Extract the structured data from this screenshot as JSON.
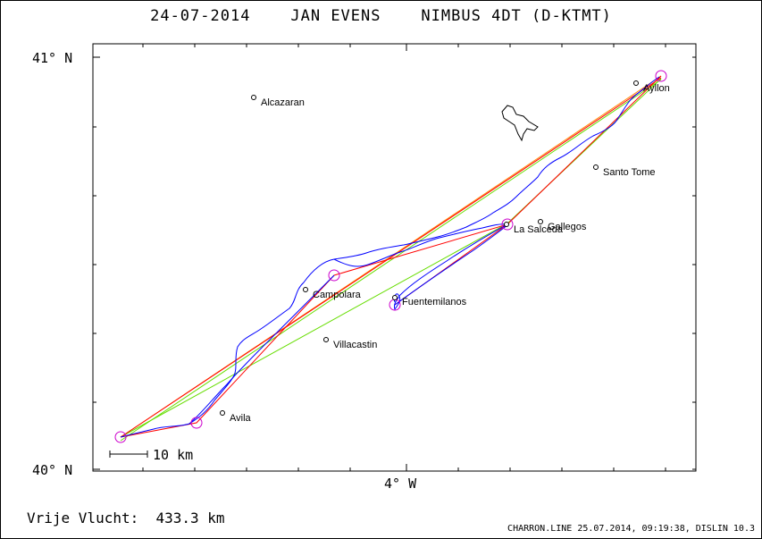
{
  "header": {
    "title": "24-07-2014    JAN EVENS    NIMBUS 4DT (D-KTMT)"
  },
  "axes": {
    "lat_top": "41° N",
    "lat_bottom": "40° N",
    "lon_center": "4° W"
  },
  "scale_bar": {
    "label": "10 km"
  },
  "places": [
    {
      "name": "Alcazaran",
      "lon": -4.6,
      "lat": 40.91
    },
    {
      "name": "Ayllon",
      "lon": -3.37,
      "lat": 40.94
    },
    {
      "name": "Santo Tome",
      "lon": -3.47,
      "lat": 40.73
    },
    {
      "name": "Gallegos",
      "lon": -3.62,
      "lat": 40.6
    },
    {
      "name": "La Salceda",
      "lon": -3.78,
      "lat": 40.59
    },
    {
      "name": "Campolara",
      "lon": -4.25,
      "lat": 40.42
    },
    {
      "name": "Fuentemilanos",
      "lon": -4.0,
      "lat": 40.4
    },
    {
      "name": "Villacastin",
      "lon": -4.18,
      "lat": 40.3
    },
    {
      "name": "Avila",
      "lon": -4.43,
      "lat": 40.13
    }
  ],
  "turnpoints": [
    {
      "lon": -4.66,
      "lat": 40.08
    },
    {
      "lon": -4.45,
      "lat": 40.11
    },
    {
      "lon": -4.2,
      "lat": 40.47
    },
    {
      "lon": -3.77,
      "lat": 40.59
    },
    {
      "lon": -3.35,
      "lat": 40.96
    },
    {
      "lon": -3.97,
      "lat": 40.38
    }
  ],
  "footer": {
    "distance": "Vrije Vlucht:  433.3 km",
    "info": "CHARRON.LINE 25.07.2014, 09:19:38, DISLIN 10.3"
  },
  "colors": {
    "track": "#0000ff",
    "route_red": "#ff0000",
    "route_green": "#66dd00",
    "route_orange": "#ff8800",
    "turnpoint": "#cc00cc"
  }
}
